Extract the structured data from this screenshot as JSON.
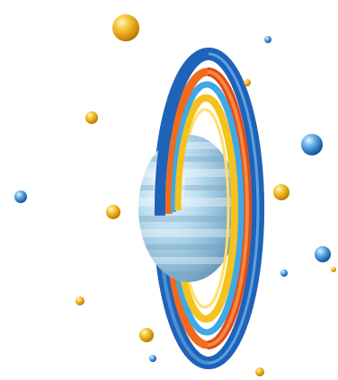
{
  "image": {
    "subject": "planet-with-rings",
    "background_color": "#ffffff"
  },
  "palette": {
    "planet_light": "#dbeef8",
    "planet_mid": "#9fc7df",
    "planet_dark": "#5d8eb0",
    "ring_outer": "#1f63b8",
    "ring_orange": "#f26a1c",
    "ring_red": "#e14a1a",
    "ring_yellow": "#f6c21e",
    "ring_light_blue": "#3fa9e6",
    "orb_gold": "#e2a010",
    "orb_blue": "#2b7fd0"
  },
  "orbs": [
    {
      "color": "gold"
    },
    {
      "color": "blue"
    },
    {
      "color": "gold"
    },
    {
      "color": "gold"
    },
    {
      "color": "blue"
    },
    {
      "color": "blue"
    },
    {
      "color": "gold"
    },
    {
      "color": "gold"
    },
    {
      "color": "blue"
    },
    {
      "color": "blue"
    },
    {
      "color": "gold"
    },
    {
      "color": "gold"
    },
    {
      "color": "gold"
    },
    {
      "color": "blue"
    },
    {
      "color": "gold"
    }
  ]
}
